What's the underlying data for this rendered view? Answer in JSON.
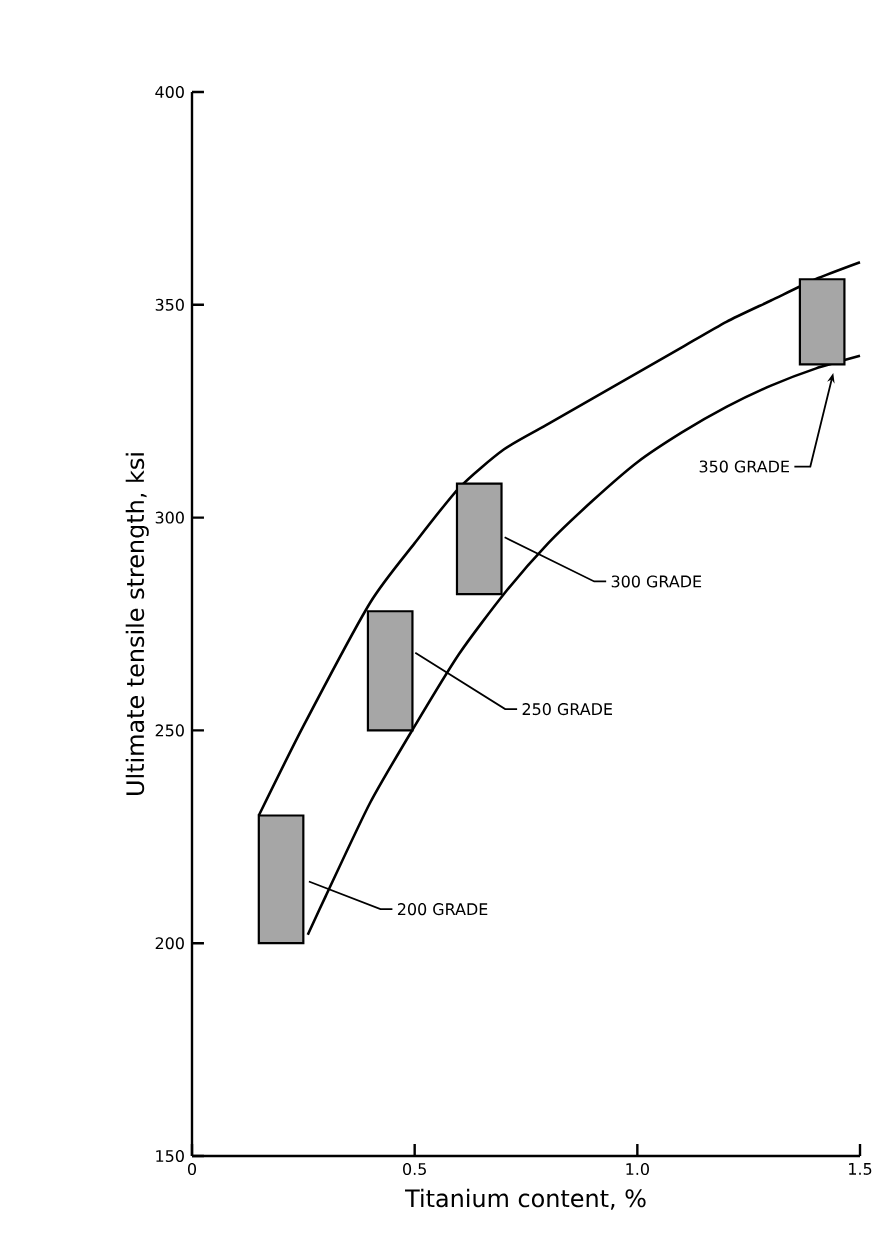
{
  "chart_data": {
    "type": "line",
    "xlabel": "Titanium content, %",
    "ylabel": "Ultimate tensile strength, ksi",
    "xlim": [
      0,
      1.5
    ],
    "ylim": [
      150,
      400
    ],
    "xticks": [
      0,
      0.5,
      {
        "value": 1,
        "label": "1.0"
      },
      1.5
    ],
    "yticks": [
      150,
      200,
      250,
      300,
      350,
      400
    ],
    "series": [
      {
        "color": "#000000",
        "x": [
          0.15,
          0.25,
          0.4,
          0.5,
          0.6,
          0.7,
          0.8,
          0.9,
          1.0,
          1.1,
          1.2,
          1.3,
          1.4,
          1.5
        ],
        "values": [
          230,
          251,
          280,
          294,
          307,
          316,
          322,
          328,
          334,
          340,
          346,
          351,
          356,
          360
        ]
      },
      {
        "color": "#000000",
        "x": [
          0.26,
          0.3,
          0.4,
          0.5,
          0.6,
          0.7,
          0.8,
          0.9,
          1.0,
          1.1,
          1.2,
          1.3,
          1.4,
          1.5
        ],
        "values": [
          202,
          211,
          233,
          251,
          268,
          282,
          294,
          304,
          313,
          320,
          326,
          331,
          335,
          338
        ]
      },
      {
        "type": "bar",
        "color": "#a6a6a6",
        "x": [
          0.2,
          0.445,
          0.645,
          1.415
        ],
        "base": [
          200,
          250,
          282,
          336
        ],
        "values": [
          30,
          28,
          26,
          20
        ]
      }
    ],
    "annotations": [
      {
        "text": "200 GRADE",
        "x": 0.25,
        "y": 215
      },
      {
        "text": "250 GRADE",
        "x": 0.49,
        "y": 269
      },
      {
        "text": "300 GRADE",
        "x": 0.69,
        "y": 296
      },
      {
        "text": "350 GRADE",
        "x": 1.44,
        "y": 334
      }
    ]
  }
}
